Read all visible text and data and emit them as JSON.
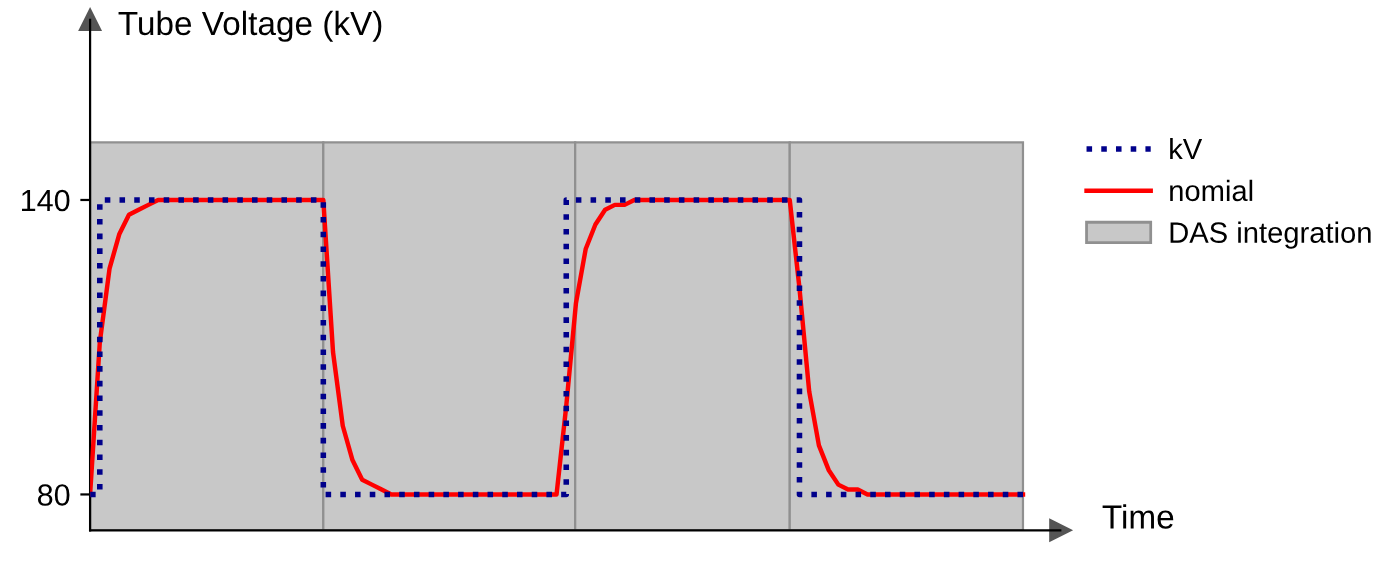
{
  "chart_data": {
    "type": "line",
    "ylabel": "Tube Voltage (kV)",
    "xlabel": "Time",
    "categories": [
      null,
      null,
      null,
      null,
      null,
      null,
      null,
      null,
      null,
      null,
      null,
      null,
      null,
      null,
      null,
      null,
      null,
      null,
      null,
      null,
      null,
      null,
      null,
      null,
      null,
      null,
      null,
      null,
      null,
      null,
      null,
      null,
      null,
      null,
      null,
      null,
      null,
      null,
      null,
      null,
      null,
      null,
      null,
      null,
      null,
      null,
      null,
      null,
      null,
      null,
      null,
      null,
      null,
      null,
      null,
      null,
      null,
      null,
      null,
      null,
      null,
      null,
      null,
      null,
      null,
      null,
      null,
      null,
      null,
      null,
      null,
      null,
      null,
      null,
      null,
      null,
      null,
      null,
      null,
      null,
      null,
      null,
      null,
      null,
      null,
      null,
      null,
      null,
      null,
      null,
      null,
      null,
      null,
      null,
      null,
      null,
      null
    ],
    "ylim": [
      72.7,
      176.7
    ],
    "yticks": [
      80,
      140
    ],
    "tick_labels": "y",
    "grid": false,
    "legend": "right",
    "marker": "none",
    "series": [
      {
        "name": "kV",
        "type": "step",
        "color": "#00008b",
        "line_style": "dotted",
        "values": [
          80,
          140,
          140,
          140,
          140,
          140,
          140,
          140,
          140,
          140,
          140,
          140,
          140,
          140,
          140,
          140,
          140,
          140,
          140,
          140,
          140,
          140,
          140,
          140,
          80,
          80,
          80,
          80,
          80,
          80,
          80,
          80,
          80,
          80,
          80,
          80,
          80,
          80,
          80,
          80,
          80,
          80,
          80,
          80,
          80,
          80,
          80,
          80,
          80,
          140,
          140,
          140,
          140,
          140,
          140,
          140,
          140,
          140,
          140,
          140,
          140,
          140,
          140,
          140,
          140,
          140,
          140,
          140,
          140,
          140,
          140,
          140,
          140,
          80,
          80,
          80,
          80,
          80,
          80,
          80,
          80,
          80,
          80,
          80,
          80,
          80,
          80,
          80,
          80,
          80,
          80,
          80,
          80,
          80,
          80,
          80,
          80
        ]
      },
      {
        "name": "nomial",
        "color": "#ff0000",
        "line_style": "solid",
        "values": [
          80,
          111,
          126,
          133,
          137,
          138,
          139,
          140,
          140,
          140,
          140,
          140,
          140,
          140,
          140,
          140,
          140,
          140,
          140,
          140,
          140,
          140,
          140,
          140,
          140,
          109,
          94,
          87,
          83,
          82,
          81,
          80,
          80,
          80,
          80,
          80,
          80,
          80,
          80,
          80,
          80,
          80,
          80,
          80,
          80,
          80,
          80,
          80,
          80,
          98,
          119,
          130,
          135,
          138,
          139,
          139,
          140,
          140,
          140,
          140,
          140,
          140,
          140,
          140,
          140,
          140,
          140,
          140,
          140,
          140,
          140,
          140,
          140,
          122,
          101,
          90,
          85,
          82,
          81,
          81,
          80,
          80,
          80,
          80,
          80,
          80,
          80,
          80,
          80,
          80,
          80,
          80,
          80,
          80,
          80,
          80,
          80
        ]
      }
    ],
    "annotations": [
      "DAS integration"
    ]
  }
}
